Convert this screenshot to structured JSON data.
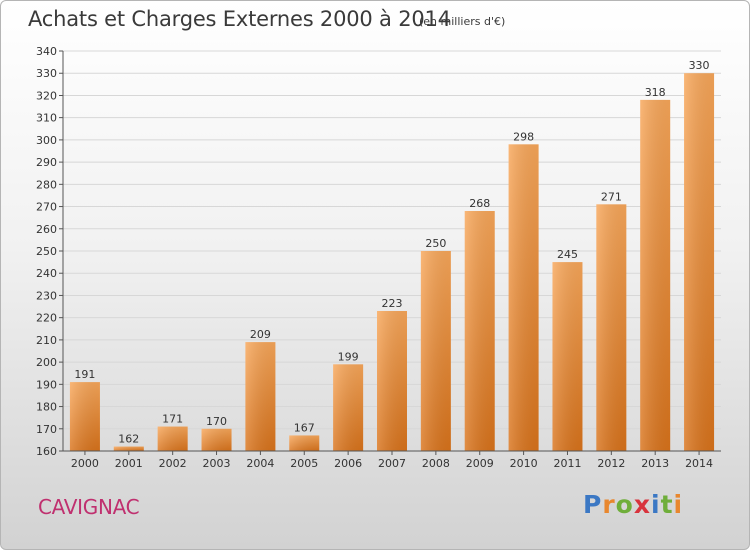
{
  "title": "Achats et Charges Externes 2000 à 2014",
  "unit_note": "(en milliers d'€)",
  "place": "CAVIGNAC",
  "logo": {
    "letters": [
      {
        "ch": "P",
        "color": "#3b78c4"
      },
      {
        "ch": "r",
        "color": "#e8872e"
      },
      {
        "ch": "o",
        "color": "#6fae3a"
      },
      {
        "ch": "x",
        "color": "#d8333d"
      },
      {
        "ch": "i",
        "color": "#3b78c4"
      },
      {
        "ch": "t",
        "color": "#6fae3a"
      },
      {
        "ch": "i",
        "color": "#e8872e"
      }
    ]
  },
  "chart_data": {
    "type": "bar",
    "title": "Achats et Charges Externes 2000 à 2014",
    "subtitle": "(en milliers d'€)",
    "categories": [
      "2000",
      "2001",
      "2002",
      "2003",
      "2004",
      "2005",
      "2006",
      "2007",
      "2008",
      "2009",
      "2010",
      "2011",
      "2012",
      "2013",
      "2014"
    ],
    "values": [
      191,
      162,
      171,
      170,
      209,
      167,
      199,
      223,
      250,
      268,
      298,
      245,
      271,
      318,
      330
    ],
    "ylim": [
      160,
      340
    ],
    "yticks": [
      160,
      170,
      180,
      190,
      200,
      210,
      220,
      230,
      240,
      250,
      260,
      270,
      280,
      290,
      300,
      310,
      320,
      330,
      340
    ],
    "grid": true,
    "bar_color_light": "#f8a75a",
    "bar_color_dark": "#d9731b"
  }
}
